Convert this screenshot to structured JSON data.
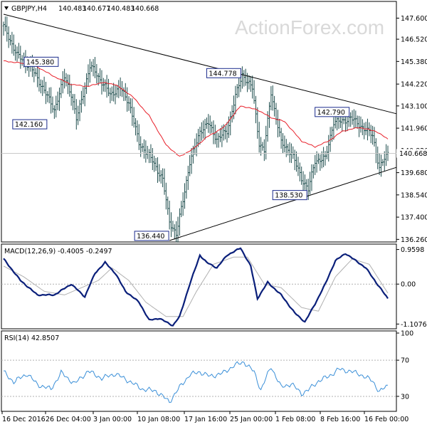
{
  "chart_data": {
    "type": "ohlc",
    "symbol_header": "GBPJPY,H4",
    "ohlc_header": [
      "140.483",
      "140.677",
      "140.483",
      "140.668"
    ],
    "watermark": "ActionForex.com",
    "colors": {
      "bars": "#1f4e4e",
      "ma": "#e8202a",
      "trend": "#000000",
      "macd": "#0a1f7a",
      "signal": "#b0b0b0",
      "rsi": "#3a8fd8",
      "label_border": "#1a2a8c"
    },
    "price_axis": {
      "ymin": 136.2,
      "ymax": 147.8,
      "ticks": [
        "147.600",
        "146.520",
        "145.380",
        "144.220",
        "143.100",
        "141.960",
        "140.820",
        "139.680",
        "138.540",
        "137.400",
        "136.260"
      ]
    },
    "last_price_tag": "140.668",
    "x_labels": [
      "16 Dec 2016",
      "26 Dec 04:00",
      "3 Jan 00:00",
      "10 Jan 08:00",
      "17 Jan 16:00",
      "25 Jan 00:00",
      "1 Feb 08:00",
      "8 Feb 16:00",
      "16 Feb 00:00"
    ],
    "annotations": [
      {
        "label": "145.380",
        "price": 145.38,
        "index": 34
      },
      {
        "label": "142.160",
        "price": 142.16,
        "index": 26
      },
      {
        "label": "144.778",
        "price": 144.78,
        "index": 141
      },
      {
        "label": "136.440",
        "price": 136.44,
        "index": 98
      },
      {
        "label": "142.790",
        "price": 142.79,
        "index": 205
      },
      {
        "label": "138.530",
        "price": 138.53,
        "index": 180
      }
    ],
    "price_swings": [
      [
        0,
        147.2
      ],
      [
        8,
        145.7
      ],
      [
        16,
        145.1
      ],
      [
        24,
        143.9
      ],
      [
        30,
        142.9
      ],
      [
        36,
        144.6
      ],
      [
        40,
        143.7
      ],
      [
        43,
        142.4
      ],
      [
        51,
        145.1
      ],
      [
        54,
        144.9
      ],
      [
        58,
        144.3
      ],
      [
        63,
        143.7
      ],
      [
        69,
        144.0
      ],
      [
        74,
        143.3
      ],
      [
        80,
        141.2
      ],
      [
        88,
        140.3
      ],
      [
        94,
        139.3
      ],
      [
        98,
        137.2
      ],
      [
        102,
        136.5
      ],
      [
        106,
        138.3
      ],
      [
        110,
        140.2
      ],
      [
        116,
        141.8
      ],
      [
        121,
        142.2
      ],
      [
        126,
        141.4
      ],
      [
        132,
        141.8
      ],
      [
        137,
        143.6
      ],
      [
        141,
        144.7
      ],
      [
        147,
        144.0
      ],
      [
        151,
        141.2
      ],
      [
        154,
        140.8
      ],
      [
        158,
        143.8
      ],
      [
        164,
        141.2
      ],
      [
        170,
        140.7
      ],
      [
        176,
        139.4
      ],
      [
        180,
        138.8
      ],
      [
        184,
        140.3
      ],
      [
        190,
        140.4
      ],
      [
        195,
        142.3
      ],
      [
        200,
        142.3
      ],
      [
        205,
        142.5
      ],
      [
        212,
        142.0
      ],
      [
        218,
        141.6
      ],
      [
        222,
        139.9
      ],
      [
        227,
        140.7
      ]
    ],
    "sma_swings": [
      [
        0,
        145.4
      ],
      [
        10,
        145.3
      ],
      [
        20,
        145.1
      ],
      [
        30,
        144.6
      ],
      [
        40,
        144.2
      ],
      [
        50,
        144.1
      ],
      [
        58,
        144.3
      ],
      [
        66,
        144.2
      ],
      [
        76,
        143.6
      ],
      [
        86,
        142.6
      ],
      [
        96,
        141.1
      ],
      [
        104,
        140.5
      ],
      [
        112,
        140.9
      ],
      [
        120,
        141.5
      ],
      [
        130,
        142.0
      ],
      [
        140,
        143.1
      ],
      [
        150,
        142.9
      ],
      [
        158,
        142.5
      ],
      [
        166,
        142.3
      ],
      [
        176,
        141.3
      ],
      [
        184,
        141.0
      ],
      [
        192,
        141.3
      ],
      [
        200,
        141.8
      ],
      [
        210,
        142.0
      ],
      [
        220,
        141.8
      ],
      [
        227,
        141.4
      ]
    ],
    "trendlines": [
      {
        "from": {
          "index": 0,
          "price": 147.8
        },
        "to": {
          "index": 227,
          "price": 142.7
        }
      },
      {
        "from": {
          "index": 98,
          "price": 136.2
        },
        "to": {
          "index": 227,
          "price": 139.95
        }
      }
    ],
    "macd": {
      "header": "MACD(12,26,9) -0.4005 -0.2497",
      "ymin": -1.2,
      "ymax": 1.05,
      "ticks": [
        "0.9598",
        "0.00",
        "-1.1076"
      ],
      "macd_swings": [
        [
          0,
          0.7
        ],
        [
          10,
          0.1
        ],
        [
          20,
          -0.3
        ],
        [
          30,
          -0.3
        ],
        [
          40,
          0.0
        ],
        [
          48,
          -0.35
        ],
        [
          54,
          0.3
        ],
        [
          60,
          0.6
        ],
        [
          66,
          0.3
        ],
        [
          72,
          -0.2
        ],
        [
          80,
          -0.5
        ],
        [
          86,
          -1.0
        ],
        [
          92,
          -0.95
        ],
        [
          100,
          -1.15
        ],
        [
          104,
          -0.9
        ],
        [
          110,
          0.0
        ],
        [
          116,
          0.8
        ],
        [
          120,
          0.6
        ],
        [
          126,
          0.45
        ],
        [
          132,
          0.8
        ],
        [
          140,
          1.0
        ],
        [
          146,
          0.5
        ],
        [
          150,
          -0.4
        ],
        [
          156,
          0.05
        ],
        [
          164,
          -0.3
        ],
        [
          172,
          -0.8
        ],
        [
          178,
          -1.05
        ],
        [
          184,
          -0.55
        ],
        [
          190,
          0.0
        ],
        [
          196,
          0.65
        ],
        [
          202,
          0.85
        ],
        [
          208,
          0.65
        ],
        [
          214,
          0.45
        ],
        [
          220,
          0.05
        ],
        [
          227,
          -0.4
        ]
      ],
      "signal_swings": [
        [
          0,
          0.5
        ],
        [
          12,
          0.2
        ],
        [
          24,
          -0.2
        ],
        [
          36,
          -0.3
        ],
        [
          46,
          -0.1
        ],
        [
          56,
          0.1
        ],
        [
          64,
          0.45
        ],
        [
          74,
          0.1
        ],
        [
          84,
          -0.5
        ],
        [
          96,
          -0.9
        ],
        [
          106,
          -0.9
        ],
        [
          114,
          -0.2
        ],
        [
          124,
          0.55
        ],
        [
          136,
          0.75
        ],
        [
          144,
          0.75
        ],
        [
          154,
          0.0
        ],
        [
          164,
          -0.1
        ],
        [
          176,
          -0.65
        ],
        [
          186,
          -0.75
        ],
        [
          196,
          0.2
        ],
        [
          206,
          0.7
        ],
        [
          216,
          0.55
        ],
        [
          227,
          -0.25
        ]
      ],
      "value": -0.4005,
      "signal": -0.2497
    },
    "rsi": {
      "header": "RSI(14) 42.8507",
      "ymin": 15,
      "ymax": 100,
      "ticks": [
        "100",
        "70",
        "30"
      ],
      "swings": [
        [
          0,
          57
        ],
        [
          6,
          46
        ],
        [
          14,
          55
        ],
        [
          20,
          43
        ],
        [
          28,
          38
        ],
        [
          34,
          56
        ],
        [
          42,
          44
        ],
        [
          50,
          58
        ],
        [
          58,
          50
        ],
        [
          66,
          55
        ],
        [
          74,
          47
        ],
        [
          82,
          38
        ],
        [
          90,
          36
        ],
        [
          98,
          24
        ],
        [
          104,
          40
        ],
        [
          110,
          54
        ],
        [
          116,
          57
        ],
        [
          122,
          52
        ],
        [
          130,
          56
        ],
        [
          136,
          64
        ],
        [
          142,
          68
        ],
        [
          148,
          57
        ],
        [
          152,
          37
        ],
        [
          158,
          63
        ],
        [
          164,
          40
        ],
        [
          170,
          44
        ],
        [
          176,
          33
        ],
        [
          180,
          37
        ],
        [
          186,
          47
        ],
        [
          192,
          52
        ],
        [
          198,
          60
        ],
        [
          204,
          58
        ],
        [
          210,
          55
        ],
        [
          218,
          47
        ],
        [
          222,
          35
        ],
        [
          227,
          42
        ]
      ],
      "value": 42.8507
    }
  }
}
